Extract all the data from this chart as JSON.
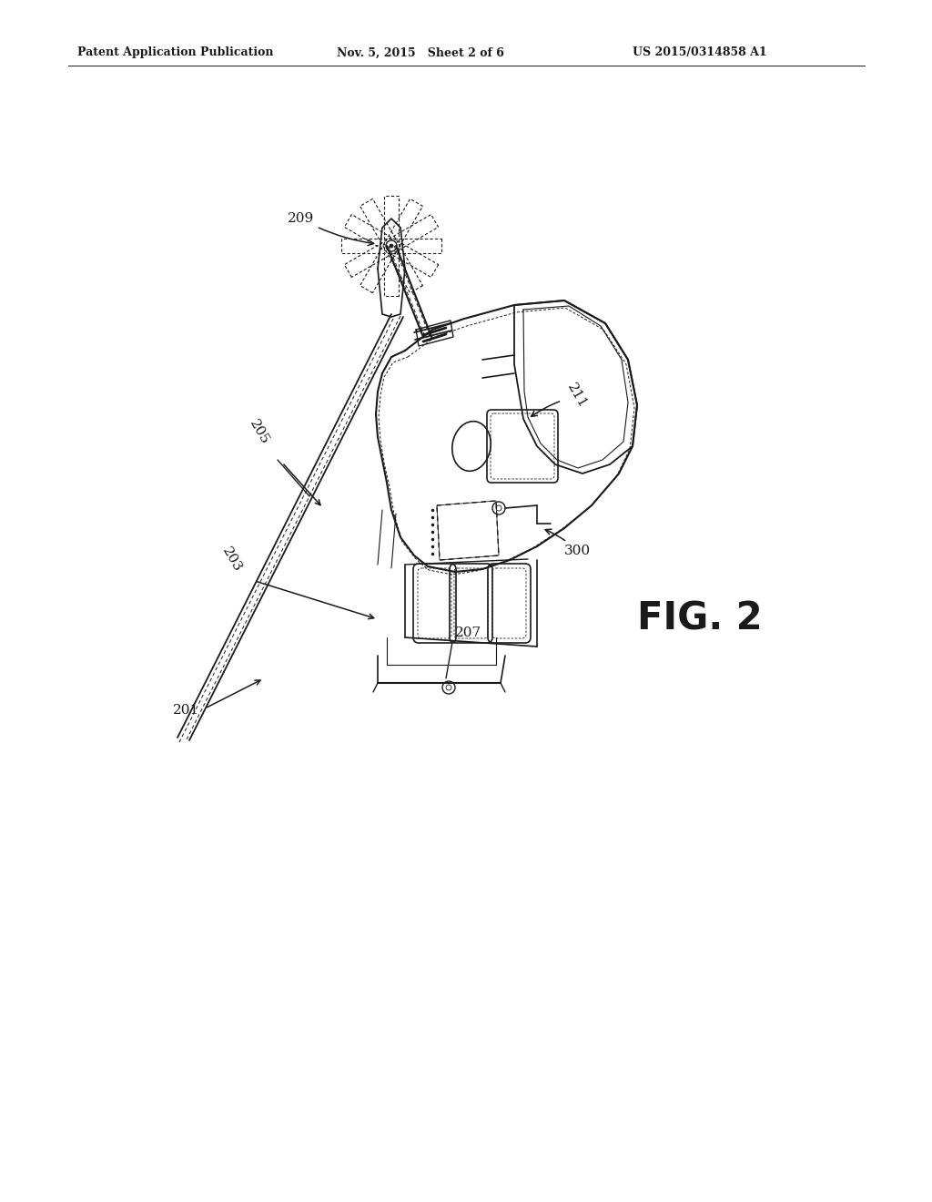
{
  "bg_color": "#ffffff",
  "line_color": "#1a1a1a",
  "header_left": "Patent Application Publication",
  "header_mid": "Nov. 5, 2015   Sheet 2 of 6",
  "header_right": "US 2015/0314858 A1",
  "fig_label": "FIG. 2",
  "title_fontsize": 9,
  "fig_fontsize": 30,
  "label_fontsize": 11
}
